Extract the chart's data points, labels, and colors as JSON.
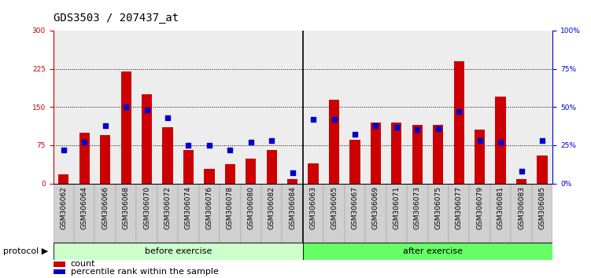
{
  "title": "GDS3503 / 207437_at",
  "categories": [
    "GSM306062",
    "GSM306064",
    "GSM306066",
    "GSM306068",
    "GSM306070",
    "GSM306072",
    "GSM306074",
    "GSM306076",
    "GSM306078",
    "GSM306080",
    "GSM306082",
    "GSM306084",
    "GSM306063",
    "GSM306065",
    "GSM306067",
    "GSM306069",
    "GSM306071",
    "GSM306073",
    "GSM306075",
    "GSM306077",
    "GSM306079",
    "GSM306081",
    "GSM306083",
    "GSM306085"
  ],
  "count_values": [
    18,
    100,
    95,
    220,
    175,
    110,
    65,
    28,
    38,
    48,
    65,
    8,
    40,
    165,
    85,
    120,
    120,
    115,
    115,
    240,
    105,
    170,
    8,
    55
  ],
  "percentile_values": [
    22,
    27,
    38,
    50,
    48,
    43,
    25,
    25,
    22,
    27,
    28,
    7,
    42,
    42,
    32,
    38,
    37,
    35,
    36,
    47,
    28,
    27,
    8,
    28
  ],
  "before_count": 12,
  "bar_color": "#CC0000",
  "dot_color": "#0000CC",
  "before_color": "#CCFFCC",
  "after_color": "#66FF66",
  "ylim_left": [
    0,
    300
  ],
  "ylim_right": [
    0,
    100
  ],
  "yticks_left": [
    0,
    75,
    150,
    225,
    300
  ],
  "yticks_right": [
    0,
    25,
    50,
    75,
    100
  ],
  "grid_values": [
    75,
    150,
    225
  ],
  "legend_count_label": "count",
  "legend_percentile_label": "percentile rank within the sample",
  "protocol_label": "protocol",
  "before_label": "before exercise",
  "after_label": "after exercise",
  "title_fontsize": 10,
  "tick_fontsize": 6.5,
  "label_fontsize": 8,
  "legend_fontsize": 8
}
